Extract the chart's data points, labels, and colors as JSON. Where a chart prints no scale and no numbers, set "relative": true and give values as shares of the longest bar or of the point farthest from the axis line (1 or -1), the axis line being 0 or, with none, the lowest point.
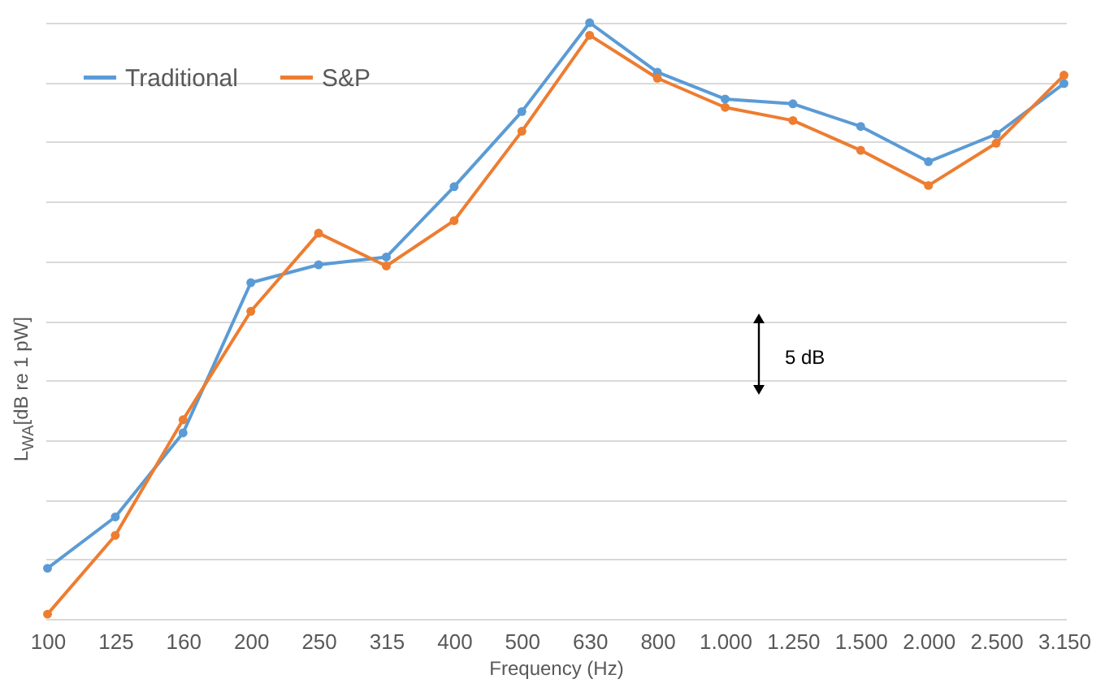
{
  "chart_data": {
    "type": "line",
    "relative": true,
    "xlabel": "Frequency (Hz)",
    "ylabel": "L$_{WA}$[dB re 1 pW]",
    "categories": [
      "100",
      "125",
      "160",
      "200",
      "250",
      "315",
      "400",
      "500",
      "630",
      "800",
      "1.000",
      "1.250",
      "1.500",
      "2.000",
      "2.500",
      "3.150"
    ],
    "series": [
      {
        "name": "Traditional",
        "color": "#5b9bd5",
        "values": [
          0.085,
          0.171,
          0.312,
          0.564,
          0.594,
          0.607,
          0.725,
          0.851,
          1,
          0.917,
          0.872,
          0.864,
          0.826,
          0.767,
          0.813,
          0.898
        ]
      },
      {
        "name": "S&P",
        "color": "#ed7d31",
        "values": [
          0.008,
          0.14,
          0.334,
          0.516,
          0.647,
          0.592,
          0.668,
          0.818,
          0.979,
          0.907,
          0.858,
          0.836,
          0.786,
          0.727,
          0.798,
          0.912
        ]
      }
    ],
    "annotations": [
      "5 dB"
    ],
    "grid": "y",
    "legend": "top left",
    "marker": "circle",
    "line_style": "solid"
  }
}
